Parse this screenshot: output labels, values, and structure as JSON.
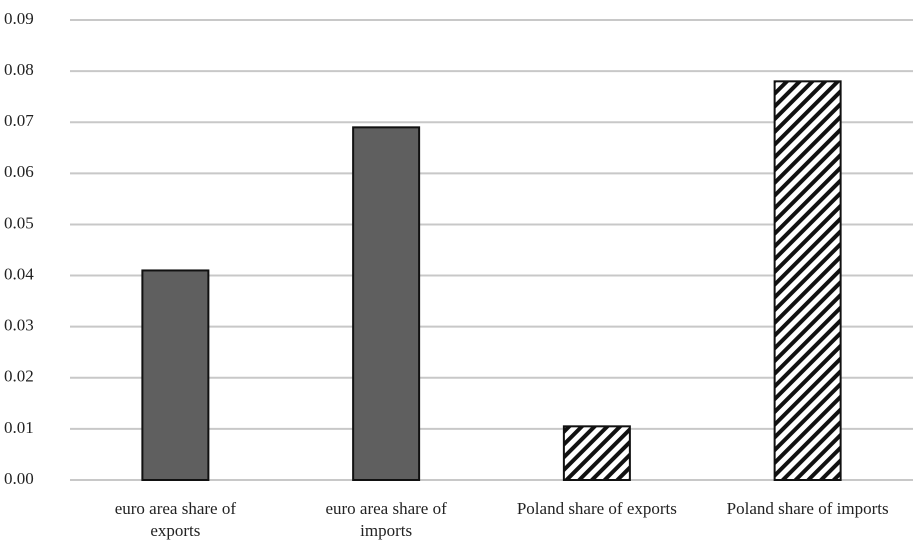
{
  "chart_data": {
    "type": "bar",
    "categories": [
      "euro area share of exports",
      "euro area share of imports",
      "Poland share of exports",
      "Poland share of imports"
    ],
    "values": [
      0.041,
      0.069,
      0.0105,
      0.078
    ],
    "color": "#5f5f5f",
    "bar_styles": [
      "solid",
      "solid",
      "hatched",
      "hatched"
    ],
    "ylim": [
      0,
      0.09
    ],
    "yticks": [
      {
        "value": 0,
        "label": "0.00"
      },
      {
        "value": 0.01,
        "label": "0.01"
      },
      {
        "value": 0.02,
        "label": "0.02"
      },
      {
        "value": 0.03,
        "label": "0.03"
      },
      {
        "value": 0.04,
        "label": "0.04"
      },
      {
        "value": 0.05,
        "label": "0.05"
      },
      {
        "value": 0.06,
        "label": "0.06"
      },
      {
        "value": 0.07,
        "label": "0.07"
      },
      {
        "value": 0.08,
        "label": "0.08"
      },
      {
        "value": 0.09,
        "label": "0.09"
      }
    ],
    "grid": true
  }
}
